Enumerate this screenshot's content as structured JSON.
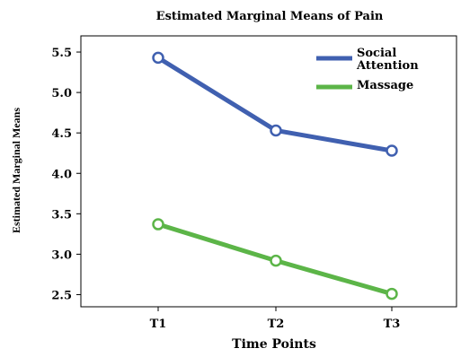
{
  "chart_data": {
    "type": "line",
    "title": "Estimated Marginal Means of Pain",
    "xlabel": "Time Points",
    "ylabel": "Estimated Marginal Means",
    "categories": [
      "T1",
      "T2",
      "T3"
    ],
    "ylim": [
      2.35,
      5.7
    ],
    "yticks": [
      "2.5",
      "3.0",
      "3.5",
      "4.0",
      "4.5",
      "5.0",
      "5.5"
    ],
    "grid": false,
    "legend_position": "top-right",
    "series": [
      {
        "name_lines": [
          "Social",
          "Attention"
        ],
        "color": "#4060b0",
        "values": [
          5.43,
          4.53,
          4.28
        ]
      },
      {
        "name_lines": [
          "Massage"
        ],
        "color": "#5cb548",
        "values": [
          3.37,
          2.92,
          2.51
        ]
      }
    ]
  }
}
